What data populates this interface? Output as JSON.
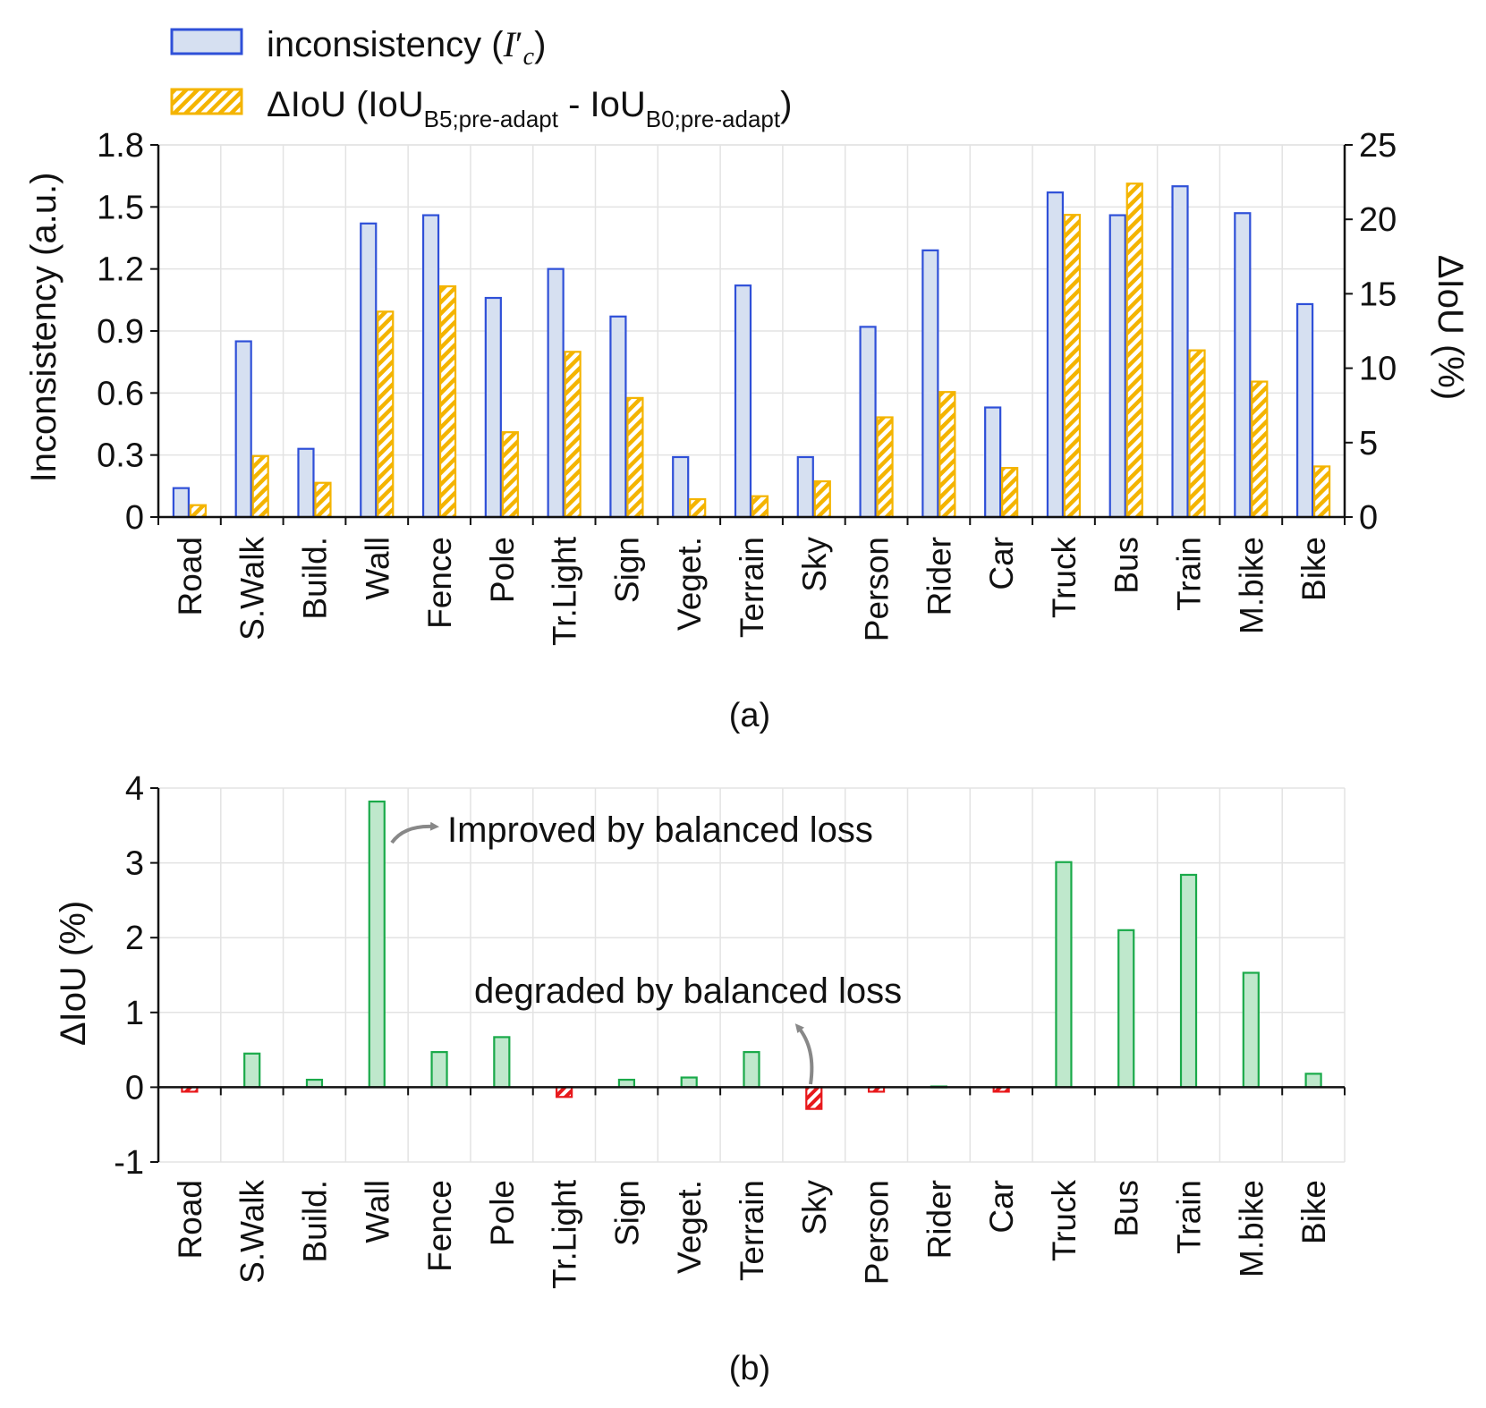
{
  "chart_data": [
    {
      "id": "a",
      "type": "bar",
      "panel_label": "(a)",
      "categories": [
        "Road",
        "S.Walk",
        "Build.",
        "Wall",
        "Fence",
        "Pole",
        "Tr.Light",
        "Sign",
        "Veget.",
        "Terrain",
        "Sky",
        "Person",
        "Rider",
        "Car",
        "Truck",
        "Bus",
        "Train",
        "M.bike",
        "Bike"
      ],
      "legend": {
        "inconsistency": {
          "label": "inconsistency (",
          "var": "I",
          "prime": "′",
          "sub": "c",
          "close": ")"
        },
        "delta": {
          "label": "ΔIoU (IoU",
          "sub1": "B5;pre-adapt",
          "mid": " - IoU",
          "sub2": "B0;pre-adapt",
          "close": ")"
        }
      },
      "series": [
        {
          "name": "inconsistency (I′c)",
          "axis": "left",
          "color": "#2f50d8",
          "fill": "#d6e0f1",
          "values": [
            0.14,
            0.85,
            0.33,
            1.42,
            1.46,
            1.06,
            1.2,
            0.97,
            0.29,
            1.12,
            0.29,
            0.92,
            1.29,
            0.53,
            1.57,
            1.46,
            1.6,
            1.47,
            1.03
          ]
        },
        {
          "name": "ΔIoU (IoU B5;pre-adapt - IoU B0;pre-adapt)",
          "axis": "right",
          "color": "#f4b400",
          "fill": "hatch",
          "values": [
            0.8,
            4.1,
            2.3,
            13.8,
            15.5,
            5.7,
            11.1,
            8.0,
            1.2,
            1.4,
            2.4,
            6.7,
            8.4,
            3.3,
            20.3,
            22.4,
            11.2,
            9.1,
            3.4
          ]
        }
      ],
      "ylabel": "Inconsistency (a.u.)",
      "ylim": [
        0,
        1.8
      ],
      "yticks": [
        "0",
        "0.3",
        "0.6",
        "0.9",
        "1.2",
        "1.5",
        "1.8"
      ],
      "y2label": "ΔIoU (%)",
      "y2lim": [
        0,
        25
      ],
      "y2ticks": [
        "0",
        "5",
        "10",
        "15",
        "20",
        "25"
      ],
      "grid": true
    },
    {
      "id": "b",
      "type": "bar",
      "panel_label": "(b)",
      "categories": [
        "Road",
        "S.Walk",
        "Build.",
        "Wall",
        "Fence",
        "Pole",
        "Tr.Light",
        "Sign",
        "Veget.",
        "Terrain",
        "Sky",
        "Person",
        "Rider",
        "Car",
        "Truck",
        "Bus",
        "Train",
        "M.bike",
        "Bike"
      ],
      "values": [
        -0.06,
        0.45,
        0.1,
        3.82,
        0.47,
        0.67,
        -0.13,
        0.1,
        0.13,
        0.47,
        -0.29,
        -0.06,
        0.01,
        -0.06,
        3.01,
        2.1,
        2.84,
        1.53,
        0.18
      ],
      "positive_color": "#1aaa4a",
      "positive_fill": "#bfe8cc",
      "negative_color": "#e8191c",
      "ylabel": "ΔIoU (%)",
      "ylim": [
        -1,
        4
      ],
      "yticks": [
        "-1",
        "0",
        "1",
        "2",
        "3",
        "4"
      ],
      "grid": true,
      "annotations": {
        "improved": "Improved by balanced loss",
        "degraded": "degraded by balanced loss"
      }
    }
  ]
}
